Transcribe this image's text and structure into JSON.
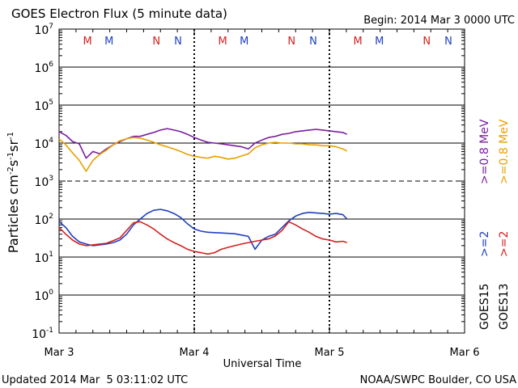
{
  "chart_data": {
    "type": "line",
    "title": "GOES Electron Flux (5 minute data)",
    "begin_label": "Begin: 2014 Mar 3 0000 UTC",
    "xlabel": "Universal Time",
    "ylabel_main": "Particles cm",
    "ylabel_sup1": "-2",
    "ylabel_mid1": "s",
    "ylabel_sup2": "-1",
    "ylabel_mid2": "sr",
    "ylabel_sup3": "-1",
    "updated": "Updated 2014 Mar  5 03:11:02 UTC",
    "credit": "NOAA/SWPC Boulder, CO USA",
    "y_scale": "log",
    "ylim": [
      0.1,
      10000000
    ],
    "xlim_days": [
      0,
      3
    ],
    "y_ticks": [
      {
        "base": "10",
        "exp": "-1",
        "value": 0.1
      },
      {
        "base": "10",
        "exp": "0",
        "value": 1
      },
      {
        "base": "10",
        "exp": "1",
        "value": 10
      },
      {
        "base": "10",
        "exp": "2",
        "value": 100
      },
      {
        "base": "10",
        "exp": "3",
        "value": 1000
      },
      {
        "base": "10",
        "exp": "4",
        "value": 10000
      },
      {
        "base": "10",
        "exp": "5",
        "value": 100000
      },
      {
        "base": "10",
        "exp": "6",
        "value": 1000000
      },
      {
        "base": "10",
        "exp": "7",
        "value": 10000000
      }
    ],
    "x_ticks": [
      {
        "label": "Mar 3",
        "day": 0
      },
      {
        "label": "Mar 4",
        "day": 1
      },
      {
        "label": "Mar 5",
        "day": 2
      },
      {
        "label": "Mar 6",
        "day": 3
      }
    ],
    "day_markers": [
      1,
      2
    ],
    "dashed_threshold": 1000,
    "markers": [
      {
        "label": "M",
        "day": 0.21,
        "color": "#d42020"
      },
      {
        "label": "M",
        "day": 0.37,
        "color": "#2040c0"
      },
      {
        "label": "N",
        "day": 0.72,
        "color": "#d42020"
      },
      {
        "label": "N",
        "day": 0.88,
        "color": "#2040c0"
      },
      {
        "label": "M",
        "day": 1.21,
        "color": "#d42020"
      },
      {
        "label": "M",
        "day": 1.37,
        "color": "#2040c0"
      },
      {
        "label": "N",
        "day": 1.72,
        "color": "#d42020"
      },
      {
        "label": "N",
        "day": 1.88,
        "color": "#2040c0"
      },
      {
        "label": "M",
        "day": 2.21,
        "color": "#d42020"
      },
      {
        "label": "M",
        "day": 2.37,
        "color": "#2040c0"
      },
      {
        "label": "N",
        "day": 2.72,
        "color": "#d42020"
      },
      {
        "label": "N",
        "day": 2.88,
        "color": "#2040c0"
      }
    ],
    "legend_right": [
      {
        "text": ">=0.8 MeV",
        "color": "#7a1ea0"
      },
      {
        "text": ">=0.8 MeV",
        "color": "#e8a000"
      },
      {
        "text": ">=2",
        "color": "#2040c0"
      },
      {
        "text": ">=2",
        "color": "#d42020"
      },
      {
        "text": "GOES15",
        "color": "#000000"
      },
      {
        "text": "GOES13",
        "color": "#000000"
      }
    ],
    "x_days": [
      0.0,
      0.05,
      0.1,
      0.15,
      0.2,
      0.25,
      0.3,
      0.35,
      0.4,
      0.45,
      0.5,
      0.55,
      0.6,
      0.65,
      0.7,
      0.75,
      0.8,
      0.85,
      0.9,
      0.95,
      1.0,
      1.05,
      1.1,
      1.15,
      1.2,
      1.25,
      1.3,
      1.35,
      1.4,
      1.45,
      1.5,
      1.55,
      1.6,
      1.65,
      1.7,
      1.75,
      1.8,
      1.85,
      1.9,
      1.95,
      2.0,
      2.05,
      2.1,
      2.13
    ],
    "series": [
      {
        "name": "GOES15 >=0.8 MeV",
        "color": "#7a1ea0",
        "values": [
          20000,
          16000,
          11000,
          9500,
          4000,
          6000,
          5200,
          7000,
          9000,
          11000,
          13000,
          15000,
          15000,
          17000,
          19000,
          22000,
          24000,
          22000,
          20000,
          17000,
          14000,
          12000,
          10500,
          10000,
          9500,
          9000,
          8500,
          8000,
          7000,
          10000,
          12000,
          14000,
          15000,
          17000,
          18000,
          20000,
          21000,
          22000,
          23000,
          22000,
          21000,
          20000,
          19000,
          17000
        ]
      },
      {
        "name": "GOES13 >=0.8 MeV",
        "color": "#e8a000",
        "values": [
          13000,
          9000,
          5500,
          3500,
          1800,
          3500,
          5000,
          6500,
          9000,
          11500,
          13000,
          14000,
          13500,
          12000,
          10500,
          9000,
          8000,
          7000,
          6000,
          5000,
          4500,
          4200,
          4000,
          4500,
          4200,
          3800,
          4000,
          4600,
          5200,
          7500,
          9000,
          10000,
          10500,
          10000,
          10000,
          9500,
          9500,
          9000,
          9000,
          8500,
          8500,
          8000,
          7000,
          6200
        ]
      },
      {
        "name": "GOES15 >=2 MeV",
        "color": "#2040c0",
        "values": [
          85,
          60,
          35,
          25,
          22,
          20,
          21,
          22,
          24,
          28,
          40,
          70,
          100,
          140,
          170,
          180,
          165,
          140,
          110,
          75,
          55,
          48,
          45,
          44,
          43,
          42,
          41,
          38,
          35,
          16,
          28,
          35,
          40,
          60,
          90,
          120,
          140,
          150,
          145,
          140,
          135,
          140,
          130,
          100
        ]
      },
      {
        "name": "GOES13 >=2 MeV",
        "color": "#d42020",
        "values": [
          60,
          40,
          28,
          22,
          20,
          21,
          22,
          23,
          27,
          32,
          50,
          80,
          85,
          70,
          55,
          40,
          30,
          24,
          20,
          16,
          14,
          13,
          12,
          13,
          16,
          18,
          20,
          22,
          24,
          26,
          28,
          30,
          36,
          50,
          85,
          70,
          55,
          45,
          35,
          30,
          28,
          25,
          26,
          24
        ]
      }
    ]
  }
}
